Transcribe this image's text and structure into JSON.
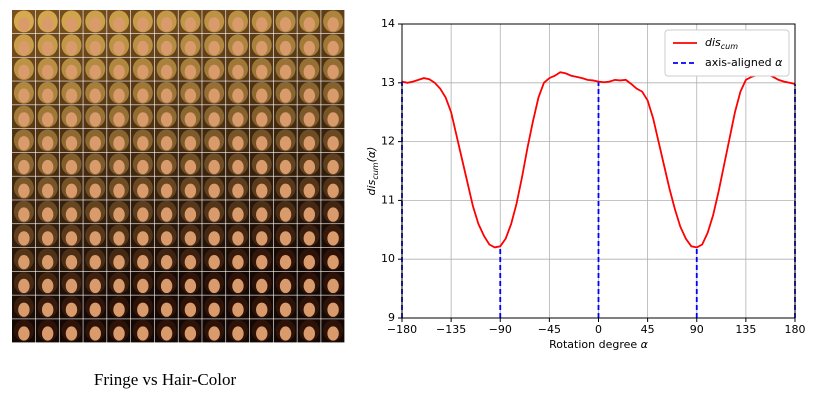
{
  "caption": "Fringe vs Hair-Color",
  "chart_data": {
    "type": "line",
    "xlabel": {
      "text": "Rotation degree ",
      "symbol": "α"
    },
    "ylabel": {
      "text": "dis",
      "sub": "cum",
      "suffix": "(α)"
    },
    "x": [
      -180,
      -175,
      -170,
      -165,
      -160,
      -155,
      -150,
      -145,
      -140,
      -135,
      -130,
      -125,
      -120,
      -115,
      -110,
      -105,
      -100,
      -95,
      -90,
      -85,
      -80,
      -75,
      -70,
      -65,
      -60,
      -55,
      -50,
      -45,
      -40,
      -35,
      -30,
      -25,
      -20,
      -15,
      -10,
      -5,
      0,
      5,
      10,
      15,
      20,
      25,
      30,
      35,
      40,
      45,
      50,
      55,
      60,
      65,
      70,
      75,
      80,
      85,
      90,
      95,
      100,
      105,
      110,
      115,
      120,
      125,
      130,
      135,
      140,
      145,
      150,
      155,
      160,
      165,
      170,
      175,
      180
    ],
    "series": [
      {
        "name": "dis",
        "name_sub": "cum",
        "color": "#ff0000",
        "linestyle": "solid",
        "values": [
          13.02,
          13.0,
          13.02,
          13.05,
          13.08,
          13.06,
          13.0,
          12.9,
          12.75,
          12.5,
          12.1,
          11.7,
          11.3,
          10.9,
          10.6,
          10.4,
          10.25,
          10.2,
          10.22,
          10.35,
          10.6,
          10.95,
          11.4,
          11.9,
          12.35,
          12.75,
          13.0,
          13.08,
          13.12,
          13.18,
          13.16,
          13.12,
          13.1,
          13.08,
          13.05,
          13.04,
          13.02,
          13.01,
          13.02,
          13.05,
          13.04,
          13.05,
          12.98,
          12.9,
          12.85,
          12.7,
          12.4,
          12.0,
          11.6,
          11.2,
          10.85,
          10.55,
          10.35,
          10.22,
          10.2,
          10.25,
          10.45,
          10.75,
          11.15,
          11.6,
          12.05,
          12.5,
          12.85,
          13.05,
          13.1,
          13.13,
          13.17,
          13.15,
          13.1,
          13.05,
          13.02,
          13.0,
          12.98
        ]
      }
    ],
    "vlines": {
      "name": "axis-aligned ",
      "name_symbol": "α",
      "color": "#0000ff",
      "linestyle": "dashed",
      "x": [
        -180,
        -90,
        0,
        90,
        180
      ],
      "values": [
        13.02,
        10.22,
        13.02,
        10.2,
        12.98
      ]
    },
    "xlim": [
      -180,
      180
    ],
    "xticks": [
      {
        "value": -180,
        "label": "−180"
      },
      {
        "value": -135,
        "label": "−135"
      },
      {
        "value": -90,
        "label": "−90"
      },
      {
        "value": -45,
        "label": "−45"
      },
      0,
      45,
      90,
      135,
      180
    ],
    "ylim": [
      9,
      14
    ],
    "yticks": [
      9,
      10,
      11,
      12,
      13,
      14
    ],
    "grid": true,
    "legend": "upper right"
  }
}
